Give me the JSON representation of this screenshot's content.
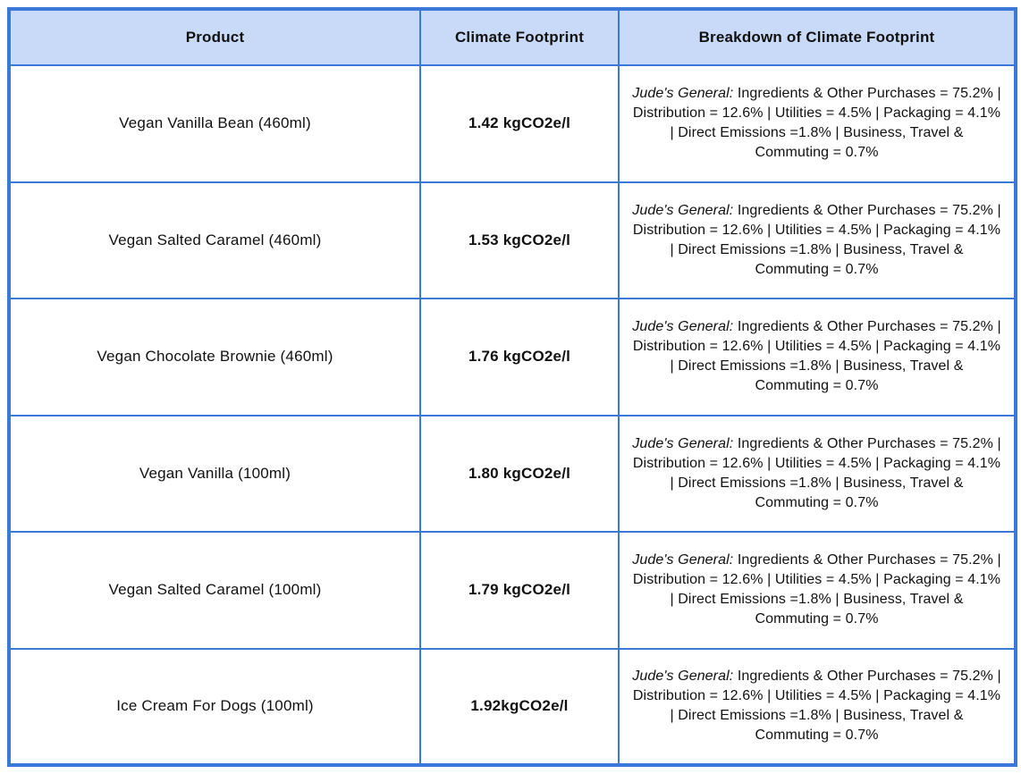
{
  "colors": {
    "border": "#3c78d8",
    "header_bg": "#c9daf8",
    "text": "#111111"
  },
  "table": {
    "columns": {
      "product": "Product",
      "footprint": "Climate Footprint",
      "breakdown": "Breakdown of Climate Footprint"
    },
    "breakdown_prefix": "Jude's General:",
    "breakdown_text": "Ingredients & Other Purchases = 75.2% | Distribution = 12.6% | Utilities = 4.5% | Packaging = 4.1% | Direct Emissions =1.8% | Business, Travel & Commuting = 0.7%",
    "rows": [
      {
        "product": "Vegan Vanilla Bean (460ml)",
        "footprint": "1.42 kgCO2e/l",
        "breakdown_prefix": "Jude's General:",
        "breakdown": "Ingredients & Other Purchases = 75.2% | Distribution = 12.6% | Utilities = 4.5% | Packaging = 4.1% | Direct Emissions =1.8% | Business, Travel & Commuting = 0.7%"
      },
      {
        "product": "Vegan Salted Caramel (460ml)",
        "footprint": "1.53 kgCO2e/l",
        "breakdown_prefix": "Jude's General:",
        "breakdown": "Ingredients & Other Purchases = 75.2% | Distribution = 12.6% | Utilities = 4.5% | Packaging = 4.1% | Direct Emissions =1.8% | Business, Travel & Commuting = 0.7%"
      },
      {
        "product": "Vegan Chocolate Brownie (460ml)",
        "footprint": "1.76 kgCO2e/l",
        "breakdown_prefix": "Jude's General:",
        "breakdown": "Ingredients & Other Purchases = 75.2% | Distribution = 12.6% | Utilities = 4.5% | Packaging = 4.1% | Direct Emissions =1.8% | Business, Travel & Commuting = 0.7%"
      },
      {
        "product": "Vegan Vanilla (100ml)",
        "footprint": "1.80 kgCO2e/l",
        "breakdown_prefix": "Jude's General:",
        "breakdown": "Ingredients & Other Purchases = 75.2% | Distribution = 12.6% | Utilities = 4.5% | Packaging = 4.1% | Direct Emissions =1.8% | Business, Travel & Commuting = 0.7%"
      },
      {
        "product": "Vegan Salted Caramel (100ml)",
        "footprint": "1.79 kgCO2e/l",
        "breakdown_prefix": "Jude's General:",
        "breakdown": "Ingredients & Other Purchases = 75.2% | Distribution = 12.6% | Utilities = 4.5% | Packaging = 4.1% | Direct Emissions =1.8% | Business, Travel & Commuting = 0.7%"
      },
      {
        "product": "Ice Cream For Dogs (100ml)",
        "footprint": "1.92kgCO2e/l",
        "breakdown_prefix": "Jude's General:",
        "breakdown": "Ingredients & Other Purchases = 75.2% | Distribution = 12.6% | Utilities = 4.5% | Packaging = 4.1% | Direct Emissions =1.8% | Business, Travel & Commuting = 0.7%"
      }
    ]
  }
}
